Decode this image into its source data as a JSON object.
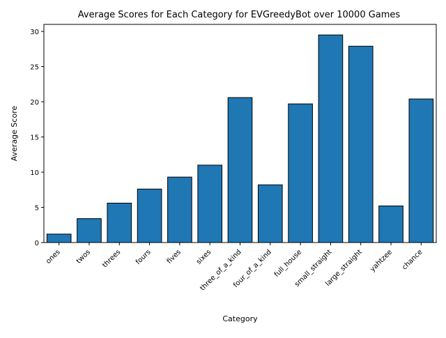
{
  "chart_data": {
    "type": "bar",
    "title": "Average Scores for Each Category for EVGreedyBot over 10000 Games",
    "xlabel": "Category",
    "ylabel": "Average Score",
    "categories": [
      "ones",
      "twos",
      "threes",
      "fours",
      "fives",
      "sixes",
      "three_of_a_kind",
      "four_of_a_kind",
      "full_house",
      "small_straight",
      "large_straight",
      "yahtzee",
      "chance"
    ],
    "values": [
      1.2,
      3.4,
      5.6,
      7.6,
      9.3,
      11.0,
      20.6,
      8.2,
      19.7,
      29.5,
      27.9,
      5.2,
      20.4
    ],
    "ylim": [
      0,
      31
    ],
    "yticks": [
      0,
      5,
      10,
      15,
      20,
      25,
      30
    ],
    "bar_color": "#1f77b4",
    "bar_edge_color": "#000000",
    "grid": false,
    "legend": false
  }
}
